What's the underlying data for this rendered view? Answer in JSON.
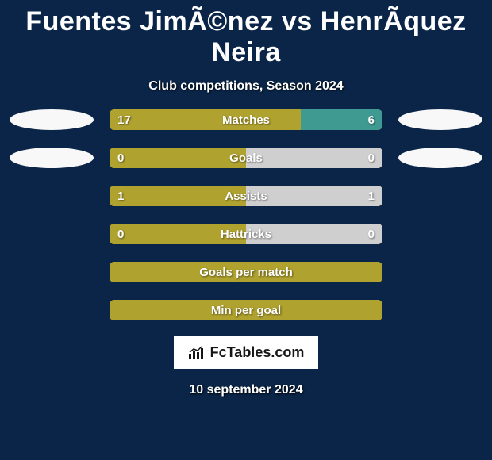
{
  "title": "Fuentes JimÃ©nez vs HenrÃ­quez Neira",
  "subtitle": "Club competitions, Season 2024",
  "date": "10 september 2024",
  "logo_text": "FcTables.com",
  "colors": {
    "bg": "#0a2548",
    "olive": "#a89a2a",
    "olive_fill": "#b0a22f",
    "white": "#f8f8f8",
    "gray": "#cfcfcf",
    "teal": "#3f9a92"
  },
  "stats": [
    {
      "label": "Matches",
      "left_val": "17",
      "right_val": "6",
      "left_pct": 70,
      "right_pct": 30,
      "left_fill": "#b0a22f",
      "right_fill": "#3f9a92",
      "base": "#b0a22f",
      "ellipse_left": "#f8f8f8",
      "ellipse_right": "#f8f8f8"
    },
    {
      "label": "Goals",
      "left_val": "0",
      "right_val": "0",
      "left_pct": 50,
      "right_pct": 50,
      "left_fill": "#b0a22f",
      "right_fill": "#cfcfcf",
      "base": "#b0a22f",
      "ellipse_left": "#f8f8f8",
      "ellipse_right": "#f8f8f8"
    },
    {
      "label": "Assists",
      "left_val": "1",
      "right_val": "1",
      "left_pct": 50,
      "right_pct": 50,
      "left_fill": "#b0a22f",
      "right_fill": "#cfcfcf",
      "base": "#b0a22f",
      "ellipse_left": null,
      "ellipse_right": null
    },
    {
      "label": "Hattricks",
      "left_val": "0",
      "right_val": "0",
      "left_pct": 50,
      "right_pct": 50,
      "left_fill": "#b0a22f",
      "right_fill": "#cfcfcf",
      "base": "#b0a22f",
      "ellipse_left": null,
      "ellipse_right": null
    },
    {
      "label": "Goals per match",
      "left_val": "",
      "right_val": "",
      "left_pct": 100,
      "right_pct": 0,
      "left_fill": "#b0a22f",
      "right_fill": "#b0a22f",
      "base": "#b0a22f",
      "ellipse_left": null,
      "ellipse_right": null
    },
    {
      "label": "Min per goal",
      "left_val": "",
      "right_val": "",
      "left_pct": 100,
      "right_pct": 0,
      "left_fill": "#b0a22f",
      "right_fill": "#b0a22f",
      "base": "#b0a22f",
      "ellipse_left": null,
      "ellipse_right": null
    }
  ]
}
